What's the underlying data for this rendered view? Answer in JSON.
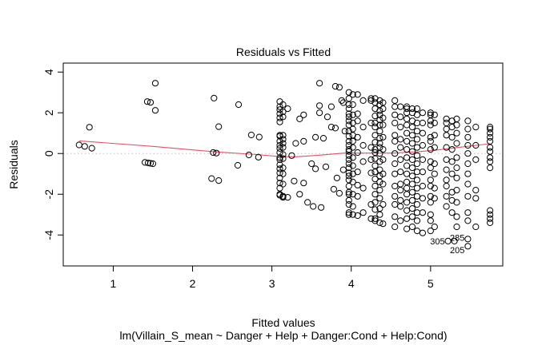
{
  "chart_data": {
    "type": "scatter",
    "title": "Residuals vs Fitted",
    "xlabel": "Fitted values",
    "ylabel": "Residuals",
    "subtitle": "lm(Villain_S_mean ~ Danger + Help + Danger:Cond + Help:Cond)",
    "xlim": [
      0.37,
      5.91
    ],
    "ylim": [
      -5.52,
      4.44
    ],
    "xticks": [
      1,
      2,
      3,
      4,
      5
    ],
    "yticks": [
      -4,
      -2,
      0,
      2,
      4
    ],
    "xtick_labels": [
      "1",
      "2",
      "3",
      "4",
      "5"
    ],
    "ytick_labels": [
      "-4",
      "-2",
      "0",
      "2",
      "4"
    ],
    "reference_line_y": 0,
    "colors": {
      "points": "#000000",
      "smooth": "#DF536B",
      "reference": "#BEBEBE"
    },
    "points": [
      [
        0.57,
        0.42
      ],
      [
        0.64,
        0.35
      ],
      [
        0.73,
        0.26
      ],
      [
        0.7,
        1.29
      ],
      [
        1.53,
        3.45
      ],
      [
        1.43,
        2.55
      ],
      [
        1.47,
        2.51
      ],
      [
        1.53,
        2.12
      ],
      [
        1.4,
        -0.44
      ],
      [
        1.44,
        -0.46
      ],
      [
        1.47,
        -0.48
      ],
      [
        1.5,
        -0.5
      ],
      [
        2.27,
        2.72
      ],
      [
        2.33,
        1.32
      ],
      [
        2.26,
        0.05
      ],
      [
        2.3,
        0.02
      ],
      [
        2.24,
        -1.23
      ],
      [
        2.33,
        -1.33
      ],
      [
        2.58,
        2.4
      ],
      [
        2.57,
        -0.58
      ],
      [
        2.74,
        0.91
      ],
      [
        2.84,
        0.81
      ],
      [
        2.71,
        -0.07
      ],
      [
        2.83,
        -0.18
      ],
      [
        3.35,
        1.7
      ],
      [
        3.4,
        1.9
      ],
      [
        3.25,
        -0.1
      ],
      [
        3.3,
        0.5
      ],
      [
        3.4,
        0.6
      ],
      [
        3.28,
        -1.35
      ],
      [
        3.4,
        -1.45
      ],
      [
        3.45,
        -2.4
      ],
      [
        3.6,
        3.45
      ],
      [
        3.6,
        2.35
      ],
      [
        3.6,
        2.0
      ],
      [
        3.75,
        2.3
      ],
      [
        3.7,
        1.8
      ],
      [
        3.55,
        0.8
      ],
      [
        3.65,
        0.75
      ],
      [
        3.52,
        -2.6
      ],
      [
        3.62,
        -2.65
      ],
      [
        3.35,
        -2.0
      ],
      [
        3.5,
        -0.5
      ],
      [
        3.8,
        3.3
      ],
      [
        3.85,
        3.25
      ],
      [
        3.75,
        1.3
      ],
      [
        3.8,
        1.25
      ],
      [
        3.78,
        -1.75
      ],
      [
        3.85,
        -1.95
      ],
      [
        3.9,
        -0.8
      ],
      [
        3.92,
        1.1
      ],
      [
        3.55,
        -0.75
      ],
      [
        3.68,
        -0.65
      ],
      [
        3.88,
        2.6
      ],
      [
        3.9,
        2.5
      ],
      [
        3.82,
        -1.2
      ],
      [
        5.22,
        -4.3
      ],
      [
        5.3,
        -4.3
      ]
    ],
    "columns": [
      {
        "x": 3.1,
        "y": [
          2.55,
          2.3,
          2.15,
          1.95,
          1.75,
          1.55,
          0.9,
          0.85,
          0.6,
          0.4,
          0.25,
          0.05,
          -0.2,
          -0.3,
          -0.55,
          -0.75,
          -0.95,
          -1.2,
          -1.45,
          -1.7,
          -2.0,
          -2.05
        ]
      },
      {
        "x": 3.14,
        "y": [
          2.4,
          2.05,
          1.8,
          0.9,
          0.7,
          0.5,
          0.3,
          -0.05,
          -0.25,
          -0.7,
          -1.0,
          -1.5,
          -2.1,
          -2.1,
          -2.15
        ]
      },
      {
        "x": 3.2,
        "y": [
          2.2,
          -2.15
        ]
      },
      {
        "x": 3.97,
        "y": [
          3.0,
          2.7,
          2.4,
          2.2,
          1.95,
          1.8,
          1.6,
          1.4,
          1.1,
          0.85,
          0.6,
          0.4,
          0.2,
          0.1,
          -0.1,
          -0.3,
          -0.5,
          -0.7,
          -0.95,
          -1.1,
          -1.3,
          -1.6,
          -1.9,
          -2.0,
          -2.3,
          -2.5,
          -2.9,
          -3.0
        ]
      },
      {
        "x": 4.02,
        "y": [
          2.9,
          2.4,
          1.9,
          1.5,
          1.2,
          0.9,
          0.6,
          0.3,
          -0.2,
          -0.6,
          -1.0,
          -1.4,
          -2.0,
          -2.6,
          -3.0
        ]
      },
      {
        "x": 4.08,
        "y": [
          2.9,
          1.95,
          1.6,
          0.8,
          0.05,
          -0.9,
          -1.55,
          -2.1,
          -3.05
        ]
      },
      {
        "x": 4.15,
        "y": [
          2.6,
          1.3,
          0.4,
          -0.4,
          -1.7,
          -2.9
        ]
      },
      {
        "x": 4.25,
        "y": [
          2.6,
          2.7,
          1.5,
          0.3,
          -0.3,
          -0.95,
          -2.5,
          -3.2
        ]
      },
      {
        "x": 4.3,
        "y": [
          2.7,
          2.5,
          2.2,
          1.85,
          1.5,
          1.3,
          0.9,
          0.55,
          0.2,
          0.05,
          -0.25,
          -0.6,
          -0.9,
          -1.25,
          -1.6,
          -2.0,
          -2.4,
          -2.75,
          -3.2,
          -3.3
        ]
      },
      {
        "x": 4.36,
        "y": [
          2.6,
          2.4,
          2.1,
          1.9,
          1.65,
          1.4,
          1.1,
          0.75,
          0.5,
          0.3,
          0.0,
          -0.4,
          -0.8,
          -1.1,
          -1.4,
          -1.8,
          -2.2,
          -2.7,
          -3.0,
          -3.4
        ]
      },
      {
        "x": 4.4,
        "y": [
          2.5,
          2.2,
          1.75,
          1.4,
          0.8,
          0.2,
          -0.3,
          -1.0,
          -1.5,
          -2.5,
          -3.45
        ]
      },
      {
        "x": 4.55,
        "y": [
          2.6,
          2.3,
          1.9,
          1.5,
          0.9,
          0.6,
          0.0,
          -0.5,
          -1.0,
          -1.6,
          -2.1,
          -2.5,
          -3.1,
          -3.6
        ]
      },
      {
        "x": 4.62,
        "y": [
          2.3,
          1.8,
          1.3,
          0.7,
          0.3,
          -0.3,
          -0.9,
          -1.5,
          -1.8,
          -2.3,
          -2.6,
          -3.3
        ]
      },
      {
        "x": 4.7,
        "y": [
          2.3,
          2.2,
          2.0,
          1.7,
          1.4,
          1.0,
          0.6,
          0.2,
          -0.2,
          -0.6,
          -1.0,
          -1.4,
          -1.7,
          -2.0,
          -2.4,
          -2.8,
          -3.2,
          -3.7
        ]
      },
      {
        "x": 4.77,
        "y": [
          2.2,
          2.0,
          1.6,
          1.3,
          0.9,
          0.5,
          0.1,
          -0.3,
          -0.7,
          -1.1,
          -1.5,
          -1.9,
          -2.3,
          -2.7,
          -3.1,
          -3.6
        ]
      },
      {
        "x": 4.83,
        "y": [
          2.2,
          1.9,
          1.5,
          1.1,
          0.7,
          0.3,
          -0.1,
          -0.5,
          -0.9,
          -1.3,
          -1.7,
          -2.1,
          -2.5,
          -2.9,
          -3.3,
          -3.8
        ]
      },
      {
        "x": 4.9,
        "y": [
          2.0,
          1.5,
          1.0,
          0.4,
          -0.3,
          -0.9,
          -1.6,
          -2.2,
          -2.9,
          -3.9
        ]
      },
      {
        "x": 5.0,
        "y": [
          2.0,
          1.9,
          1.6,
          1.4,
          0.8,
          0.6,
          0.2,
          -0.4,
          -0.7,
          -1.3,
          -1.6,
          -2.1,
          -2.4,
          -3.0,
          -3.3,
          -3.8
        ]
      },
      {
        "x": 5.05,
        "y": [
          1.9,
          1.5,
          0.9,
          0.3,
          -0.5,
          -1.0,
          -1.7,
          -2.2,
          -3.6
        ]
      },
      {
        "x": 5.2,
        "y": [
          1.7,
          1.5,
          1.2,
          0.9,
          0.3,
          -0.3,
          -0.8,
          -1.3,
          -1.6,
          -2.1,
          -2.6
        ]
      },
      {
        "x": 5.27,
        "y": [
          1.6,
          1.3,
          0.8,
          0.2,
          -0.4,
          -1.0,
          -1.9,
          -2.3,
          -2.9
        ]
      },
      {
        "x": 5.33,
        "y": [
          1.7,
          1.4,
          1.0,
          0.5,
          -0.2,
          -0.7,
          -1.2,
          -1.8,
          -2.4,
          -3.1,
          -3.6
        ]
      },
      {
        "x": 5.47,
        "y": [
          1.6,
          1.2,
          0.8,
          0.4,
          0.0,
          -0.5,
          -1.0,
          -1.5,
          -2.1,
          -2.9,
          -3.3,
          -4.2,
          -4.55
        ]
      },
      {
        "x": 5.57,
        "y": [
          1.3,
          0.4,
          -0.3,
          -1.8,
          -2.2,
          -3.6
        ]
      },
      {
        "x": 5.75,
        "y": [
          1.3,
          1.2,
          1.0,
          0.8,
          0.6,
          0.3,
          0.1,
          -0.2,
          -0.4,
          -0.7,
          -2.8,
          -3.0,
          -3.2,
          -3.4
        ]
      }
    ],
    "smooth_line": [
      [
        0.57,
        0.62
      ],
      [
        1.5,
        0.35
      ],
      [
        2.26,
        0.09
      ],
      [
        2.8,
        -0.05
      ],
      [
        3.1,
        -0.15
      ],
      [
        3.3,
        -0.16
      ],
      [
        3.6,
        -0.08
      ],
      [
        3.91,
        0.02
      ],
      [
        4.32,
        0.02
      ],
      [
        4.52,
        0.02
      ],
      [
        4.85,
        0.09
      ],
      [
        5.1,
        0.18
      ],
      [
        5.33,
        0.29
      ],
      [
        5.75,
        0.48
      ]
    ],
    "annotations": [
      {
        "label": "305",
        "x": 5.22,
        "y": -4.3
      },
      {
        "label": "285",
        "x": 5.47,
        "y": -4.45
      },
      {
        "label": "205",
        "x": 5.47,
        "y": -4.5
      }
    ]
  }
}
